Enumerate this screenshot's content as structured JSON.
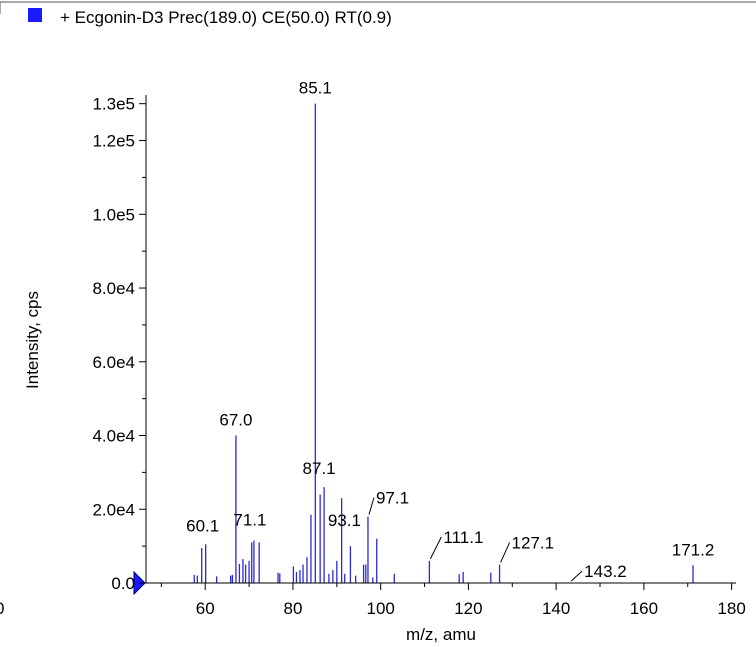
{
  "legend": {
    "label": "+ Ecgonin-D3 Prec(189.0) CE(50.0) RT(0.9)",
    "swatch_color": "#1a1aff"
  },
  "chart_data": {
    "type": "bar",
    "xlabel": "m/z, amu",
    "ylabel": "Intensity, cps",
    "xlim": [
      46.5,
      181
    ],
    "ylim": [
      0,
      131000
    ],
    "x_ticks": [
      {
        "v": 60,
        "label": "60"
      },
      {
        "v": 80,
        "label": "80"
      },
      {
        "v": 100,
        "label": "100"
      },
      {
        "v": 120,
        "label": "120"
      },
      {
        "v": 140,
        "label": "140"
      },
      {
        "v": 160,
        "label": "160"
      },
      {
        "v": 180,
        "label": "180"
      }
    ],
    "x_tick_partial_left": "0",
    "y_ticks": [
      {
        "v": 0,
        "label": "0.0"
      },
      {
        "v": 20000,
        "label": "2.0e4"
      },
      {
        "v": 40000,
        "label": "4.0e4"
      },
      {
        "v": 60000,
        "label": "6.0e4"
      },
      {
        "v": 80000,
        "label": "8.0e4"
      },
      {
        "v": 100000,
        "label": "1.0e5"
      },
      {
        "v": 120000,
        "label": "1.2e5"
      },
      {
        "v": 130000,
        "label": "1.3e5"
      }
    ],
    "y_minor_ticks": [
      10000,
      30000,
      50000,
      70000,
      90000,
      110000
    ],
    "bar_color": "#2a2ad8",
    "peaks": [
      {
        "x": 57.5,
        "y": 2200
      },
      {
        "x": 58.2,
        "y": 2000
      },
      {
        "x": 59.2,
        "y": 9500
      },
      {
        "x": 60.1,
        "y": 10500
      },
      {
        "x": 62.6,
        "y": 1800
      },
      {
        "x": 65.8,
        "y": 2000
      },
      {
        "x": 66.2,
        "y": 2200
      },
      {
        "x": 67.0,
        "y": 40000
      },
      {
        "x": 67.8,
        "y": 5200
      },
      {
        "x": 68.6,
        "y": 6500
      },
      {
        "x": 69.2,
        "y": 5000
      },
      {
        "x": 70.0,
        "y": 6000
      },
      {
        "x": 70.6,
        "y": 11000
      },
      {
        "x": 71.1,
        "y": 11500
      },
      {
        "x": 72.3,
        "y": 11000
      },
      {
        "x": 76.6,
        "y": 2800
      },
      {
        "x": 77.0,
        "y": 2600
      },
      {
        "x": 80.1,
        "y": 4500
      },
      {
        "x": 80.8,
        "y": 3000
      },
      {
        "x": 81.6,
        "y": 3500
      },
      {
        "x": 82.3,
        "y": 5000
      },
      {
        "x": 83.2,
        "y": 7000
      },
      {
        "x": 84.1,
        "y": 18500
      },
      {
        "x": 85.1,
        "y": 130000
      },
      {
        "x": 86.2,
        "y": 24000
      },
      {
        "x": 87.1,
        "y": 26000
      },
      {
        "x": 88.2,
        "y": 2500
      },
      {
        "x": 89.1,
        "y": 3500
      },
      {
        "x": 90.0,
        "y": 6000
      },
      {
        "x": 91.1,
        "y": 23000
      },
      {
        "x": 91.8,
        "y": 2500
      },
      {
        "x": 93.1,
        "y": 10000
      },
      {
        "x": 94.3,
        "y": 2000
      },
      {
        "x": 96.1,
        "y": 5000
      },
      {
        "x": 96.6,
        "y": 5000
      },
      {
        "x": 97.1,
        "y": 18000
      },
      {
        "x": 98.2,
        "y": 1500
      },
      {
        "x": 99.1,
        "y": 12000
      },
      {
        "x": 103.1,
        "y": 2500
      },
      {
        "x": 111.1,
        "y": 6000
      },
      {
        "x": 117.9,
        "y": 2400
      },
      {
        "x": 118.8,
        "y": 3000
      },
      {
        "x": 125.1,
        "y": 2800
      },
      {
        "x": 127.1,
        "y": 5000
      },
      {
        "x": 171.2,
        "y": 4800
      }
    ],
    "annotations": [
      {
        "label": "85.1",
        "x": 85.1,
        "y": 130000
      },
      {
        "label": "67.0",
        "x": 67.0,
        "y": 40000
      },
      {
        "label": "87.1",
        "x": 87.1,
        "y": 26000
      },
      {
        "label": "60.1",
        "x": 60.1,
        "y": 10500
      },
      {
        "label": "71.1",
        "x": 71.1,
        "y": 11500
      },
      {
        "label": "93.1",
        "x": 93.1,
        "y": 10000
      },
      {
        "label": "97.1",
        "x": 97.1,
        "y": 18000
      },
      {
        "label": "111.1",
        "x": 111.1,
        "y": 6000
      },
      {
        "label": "127.1",
        "x": 127.1,
        "y": 5000
      },
      {
        "label": "143.2",
        "x": 143.2,
        "y": 0
      },
      {
        "label": "171.2",
        "x": 171.2,
        "y": 4800
      }
    ],
    "grid": false,
    "legend_position": "top-left"
  }
}
